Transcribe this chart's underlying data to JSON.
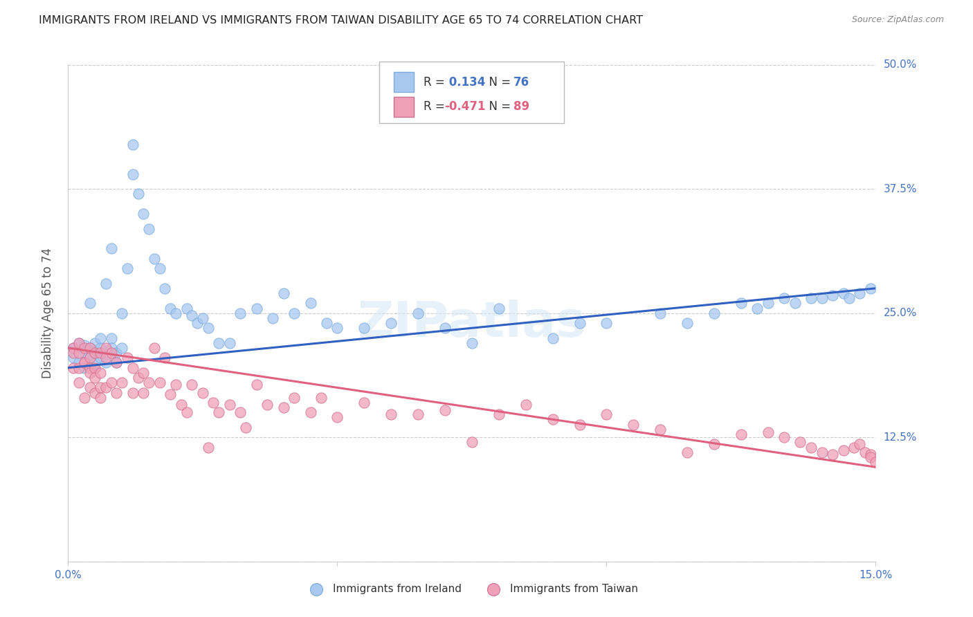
{
  "title": "IMMIGRANTS FROM IRELAND VS IMMIGRANTS FROM TAIWAN DISABILITY AGE 65 TO 74 CORRELATION CHART",
  "source": "Source: ZipAtlas.com",
  "ylabel": "Disability Age 65 to 74",
  "xlim": [
    0.0,
    0.15
  ],
  "ylim": [
    0.0,
    0.5
  ],
  "xticks": [
    0.0,
    0.05,
    0.1,
    0.15
  ],
  "xticklabels": [
    "0.0%",
    "",
    "",
    "15.0%"
  ],
  "yticks": [
    0.0,
    0.125,
    0.25,
    0.375,
    0.5
  ],
  "yticklabels": [
    "",
    "12.5%",
    "25.0%",
    "37.5%",
    "50.0%"
  ],
  "grid_color": "#c8c8c8",
  "background_color": "#ffffff",
  "ireland_color": "#a8c8f0",
  "taiwan_color": "#f0a0b8",
  "ireland_line_color": "#3060c0",
  "taiwan_line_color": "#e06080",
  "ireland_R": 0.134,
  "ireland_N": 76,
  "taiwan_R": -0.471,
  "taiwan_N": 89,
  "ireland_line_x0": 0.0,
  "ireland_line_y0": 0.195,
  "ireland_line_x1": 0.15,
  "ireland_line_y1": 0.275,
  "taiwan_line_x0": 0.0,
  "taiwan_line_y0": 0.215,
  "taiwan_line_x1": 0.15,
  "taiwan_line_y1": 0.095,
  "ireland_points_x": [
    0.001,
    0.001,
    0.002,
    0.002,
    0.003,
    0.003,
    0.003,
    0.004,
    0.004,
    0.004,
    0.005,
    0.005,
    0.005,
    0.005,
    0.006,
    0.006,
    0.006,
    0.007,
    0.007,
    0.008,
    0.008,
    0.008,
    0.009,
    0.009,
    0.01,
    0.01,
    0.011,
    0.012,
    0.012,
    0.013,
    0.014,
    0.015,
    0.016,
    0.017,
    0.018,
    0.019,
    0.02,
    0.022,
    0.023,
    0.024,
    0.025,
    0.026,
    0.028,
    0.03,
    0.032,
    0.035,
    0.038,
    0.04,
    0.042,
    0.045,
    0.048,
    0.05,
    0.055,
    0.06,
    0.065,
    0.07,
    0.075,
    0.08,
    0.09,
    0.095,
    0.1,
    0.11,
    0.115,
    0.12,
    0.125,
    0.128,
    0.13,
    0.133,
    0.135,
    0.138,
    0.14,
    0.142,
    0.144,
    0.145,
    0.147,
    0.149
  ],
  "ireland_points_y": [
    0.215,
    0.205,
    0.22,
    0.2,
    0.195,
    0.218,
    0.21,
    0.26,
    0.205,
    0.215,
    0.195,
    0.2,
    0.21,
    0.22,
    0.215,
    0.205,
    0.225,
    0.28,
    0.2,
    0.315,
    0.225,
    0.215,
    0.2,
    0.21,
    0.215,
    0.25,
    0.295,
    0.42,
    0.39,
    0.37,
    0.35,
    0.335,
    0.305,
    0.295,
    0.275,
    0.255,
    0.25,
    0.255,
    0.248,
    0.24,
    0.245,
    0.235,
    0.22,
    0.22,
    0.25,
    0.255,
    0.245,
    0.27,
    0.25,
    0.26,
    0.24,
    0.235,
    0.235,
    0.24,
    0.25,
    0.235,
    0.22,
    0.255,
    0.225,
    0.24,
    0.24,
    0.25,
    0.24,
    0.25,
    0.26,
    0.255,
    0.26,
    0.265,
    0.26,
    0.265,
    0.265,
    0.268,
    0.27,
    0.265,
    0.27,
    0.275
  ],
  "taiwan_points_x": [
    0.001,
    0.001,
    0.001,
    0.002,
    0.002,
    0.002,
    0.002,
    0.003,
    0.003,
    0.003,
    0.003,
    0.004,
    0.004,
    0.004,
    0.004,
    0.004,
    0.005,
    0.005,
    0.005,
    0.005,
    0.006,
    0.006,
    0.006,
    0.006,
    0.007,
    0.007,
    0.007,
    0.008,
    0.008,
    0.009,
    0.009,
    0.01,
    0.011,
    0.012,
    0.012,
    0.013,
    0.014,
    0.014,
    0.015,
    0.016,
    0.017,
    0.018,
    0.019,
    0.02,
    0.021,
    0.022,
    0.023,
    0.025,
    0.026,
    0.027,
    0.028,
    0.03,
    0.032,
    0.033,
    0.035,
    0.037,
    0.04,
    0.042,
    0.045,
    0.047,
    0.05,
    0.055,
    0.06,
    0.065,
    0.07,
    0.075,
    0.08,
    0.085,
    0.09,
    0.095,
    0.1,
    0.105,
    0.11,
    0.115,
    0.12,
    0.125,
    0.13,
    0.133,
    0.136,
    0.138,
    0.14,
    0.142,
    0.144,
    0.146,
    0.147,
    0.148,
    0.149,
    0.149,
    0.15
  ],
  "taiwan_points_y": [
    0.215,
    0.195,
    0.21,
    0.21,
    0.195,
    0.18,
    0.22,
    0.215,
    0.2,
    0.2,
    0.165,
    0.215,
    0.205,
    0.195,
    0.19,
    0.175,
    0.21,
    0.195,
    0.185,
    0.17,
    0.21,
    0.19,
    0.175,
    0.165,
    0.215,
    0.205,
    0.175,
    0.21,
    0.18,
    0.2,
    0.17,
    0.18,
    0.205,
    0.195,
    0.17,
    0.185,
    0.19,
    0.17,
    0.18,
    0.215,
    0.18,
    0.205,
    0.168,
    0.178,
    0.158,
    0.15,
    0.178,
    0.17,
    0.115,
    0.16,
    0.15,
    0.158,
    0.15,
    0.135,
    0.178,
    0.158,
    0.155,
    0.165,
    0.15,
    0.165,
    0.145,
    0.16,
    0.148,
    0.148,
    0.152,
    0.12,
    0.148,
    0.158,
    0.143,
    0.138,
    0.148,
    0.138,
    0.133,
    0.11,
    0.118,
    0.128,
    0.13,
    0.125,
    0.12,
    0.115,
    0.11,
    0.108,
    0.112,
    0.115,
    0.118,
    0.11,
    0.108,
    0.105,
    0.1
  ]
}
